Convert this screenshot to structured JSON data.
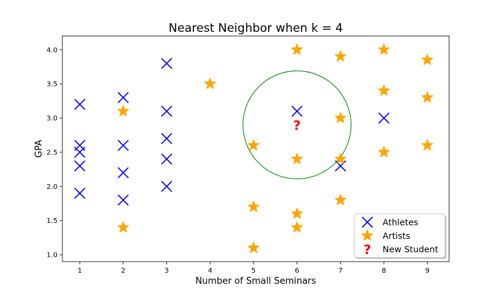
{
  "chart_data": {
    "type": "scatter",
    "title": "Nearest Neighbor when k = 4",
    "xlabel": "Number of Small Seminars",
    "ylabel": "GPA",
    "xlim": [
      0.6,
      9.5
    ],
    "ylim": [
      0.9,
      4.2
    ],
    "xticks": [
      "1",
      "2",
      "3",
      "4",
      "5",
      "6",
      "7",
      "8",
      "9"
    ],
    "yticks": [
      "1.0",
      "1.5",
      "2.0",
      "2.5",
      "3.0",
      "3.5",
      "4.0"
    ],
    "legend_position": "bottom-right",
    "grid": false,
    "series": [
      {
        "name": "Athletes",
        "marker": "x",
        "color": "#0000ff",
        "points": [
          [
            1,
            3.2
          ],
          [
            1,
            2.6
          ],
          [
            1,
            2.5
          ],
          [
            1,
            2.3
          ],
          [
            1,
            1.9
          ],
          [
            2,
            3.3
          ],
          [
            2,
            2.6
          ],
          [
            2,
            2.2
          ],
          [
            2,
            1.8
          ],
          [
            3,
            3.8
          ],
          [
            3,
            3.1
          ],
          [
            3,
            2.7
          ],
          [
            3,
            2.4
          ],
          [
            3,
            2.0
          ],
          [
            6,
            3.1
          ],
          [
            7,
            2.3
          ],
          [
            8,
            3.0
          ]
        ]
      },
      {
        "name": "Artists",
        "marker": "star",
        "color": "#ffa500",
        "points": [
          [
            2,
            3.1
          ],
          [
            2,
            1.4
          ],
          [
            4,
            3.5
          ],
          [
            5,
            2.6
          ],
          [
            5,
            1.7
          ],
          [
            5,
            1.1
          ],
          [
            6,
            4.0
          ],
          [
            6,
            2.4
          ],
          [
            6,
            1.6
          ],
          [
            6,
            1.4
          ],
          [
            7,
            3.9
          ],
          [
            7,
            3.0
          ],
          [
            7,
            2.4
          ],
          [
            7,
            1.8
          ],
          [
            8,
            4.0
          ],
          [
            8,
            3.4
          ],
          [
            8,
            2.5
          ],
          [
            9,
            3.85
          ],
          [
            9,
            3.3
          ],
          [
            9,
            2.6
          ]
        ]
      },
      {
        "name": "New Student",
        "marker": "?",
        "color": "#ff0000",
        "points": [
          [
            6,
            2.9
          ]
        ]
      }
    ],
    "neighbor_circle": {
      "color": "#008000"
    }
  }
}
